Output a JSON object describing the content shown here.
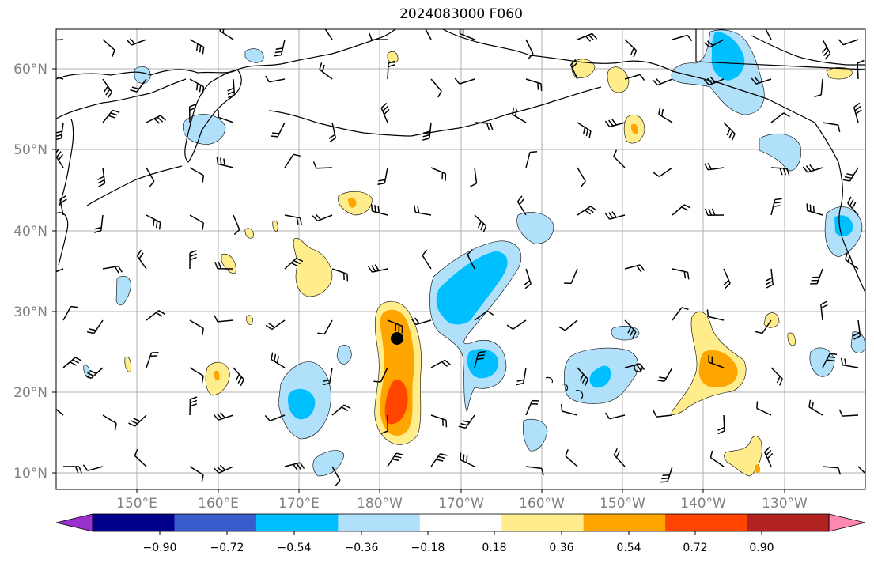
{
  "title": "2024083000 F060",
  "axes": {
    "lat_labels": [
      "10°N",
      "20°N",
      "30°N",
      "40°N",
      "50°N",
      "60°N"
    ],
    "lon_labels": [
      "150°E",
      "160°E",
      "170°E",
      "180°W",
      "170°W",
      "160°W",
      "150°W",
      "140°W",
      "130°W"
    ]
  },
  "colorbar": {
    "labels": [
      "−0.90",
      "−0.72",
      "−0.54",
      "−0.36",
      "−0.18",
      "0.18",
      "0.36",
      "0.54",
      "0.72",
      "0.90"
    ],
    "colors": [
      "#9932cc",
      "#00008b",
      "#3a5bcc",
      "#00bfff",
      "#b0e0fa",
      "#ffffff",
      "#ffec8b",
      "#ffa500",
      "#ff4500",
      "#b22222",
      "#ff88b0"
    ]
  },
  "style": {
    "land_line": "#000000",
    "grid": "#b0b0b0",
    "marker": "#000000"
  }
}
